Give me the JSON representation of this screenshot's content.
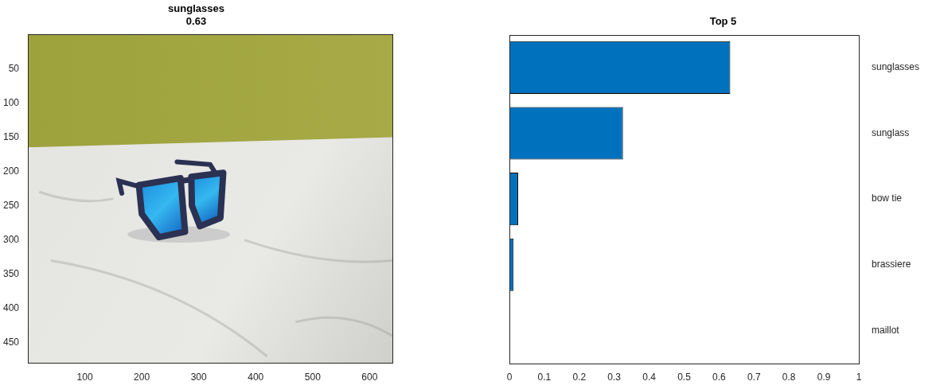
{
  "chart_data": [
    {
      "type": "image",
      "title": "sunglasses",
      "subtitle": "0.63",
      "xlim": [
        0,
        640
      ],
      "xticks": [
        100,
        200,
        300,
        400,
        500,
        600
      ],
      "ylim": [
        0,
        480
      ],
      "yticks": [
        50,
        100,
        150,
        200,
        250,
        300,
        350,
        400,
        450
      ],
      "grid": false
    },
    {
      "type": "bar",
      "orientation": "horizontal",
      "title": "Top 5",
      "categories": [
        "sunglasses",
        "sunglass",
        "bow tie",
        "brassiere",
        "maillot"
      ],
      "values": [
        0.632,
        0.325,
        0.025,
        0.012,
        0.001
      ],
      "color": "#0072bd",
      "xlim": [
        0,
        1
      ],
      "xticks": [
        0,
        0.1,
        0.2,
        0.3,
        0.4,
        0.5,
        0.6,
        0.7,
        0.8,
        0.9,
        1
      ],
      "grid": false
    }
  ]
}
